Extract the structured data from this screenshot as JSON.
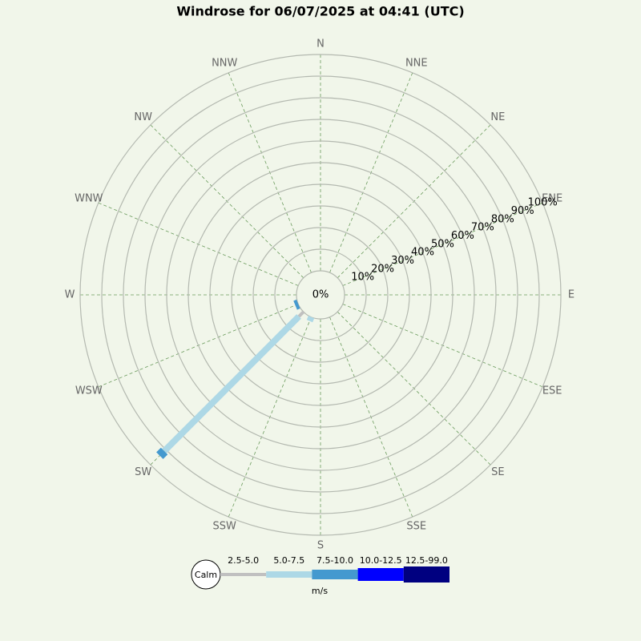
{
  "chart_data": {
    "type": "windrose",
    "title": "Windrose for 06/07/2025 at 04:41 (UTC)",
    "directions": [
      "N",
      "NNE",
      "NE",
      "ENE",
      "E",
      "ESE",
      "SE",
      "SSE",
      "S",
      "SSW",
      "SW",
      "WSW",
      "W",
      "WNW",
      "NW",
      "NNW"
    ],
    "rlim": [
      0,
      100
    ],
    "rticks": [
      {
        "value": 0,
        "label": "0%"
      },
      {
        "value": 10,
        "label": "10%"
      },
      {
        "value": 20,
        "label": "20%"
      },
      {
        "value": 30,
        "label": "30%"
      },
      {
        "value": 40,
        "label": "40%"
      },
      {
        "value": 50,
        "label": "50%"
      },
      {
        "value": 60,
        "label": "60%"
      },
      {
        "value": 70,
        "label": "70%"
      },
      {
        "value": 80,
        "label": "80%"
      },
      {
        "value": 90,
        "label": "90%"
      },
      {
        "value": 100,
        "label": "100%"
      }
    ],
    "series": [
      {
        "name": "2.5-5.0",
        "color": "#c0c0c0",
        "values": [
          0,
          0,
          0,
          0,
          0,
          0,
          0,
          0,
          0,
          0,
          3,
          0,
          0,
          0,
          0,
          0
        ]
      },
      {
        "name": "5.0-7.5",
        "color": "#add8e6",
        "values": [
          0,
          0,
          0,
          0,
          0,
          0,
          0,
          0,
          0,
          2,
          88,
          0,
          0,
          0,
          0,
          0
        ]
      },
      {
        "name": "7.5-10.0",
        "color": "#4499cf",
        "values": [
          0,
          0,
          0,
          0,
          0,
          0,
          0,
          0,
          0,
          0,
          3,
          1.5,
          0,
          0,
          0,
          0
        ]
      },
      {
        "name": "10.0-12.5",
        "color": "#0000ff",
        "values": [
          0,
          0,
          0,
          0,
          0,
          0,
          0,
          0,
          0,
          0,
          0,
          0,
          0,
          0,
          0,
          0
        ]
      },
      {
        "name": "12.5-99.0",
        "color": "#000080",
        "values": [
          0,
          0,
          0,
          0,
          0,
          0,
          0,
          0,
          0,
          0,
          0,
          0,
          0,
          0,
          0,
          0
        ]
      }
    ],
    "calm_label": "Calm",
    "legend_unit": "m/s"
  }
}
